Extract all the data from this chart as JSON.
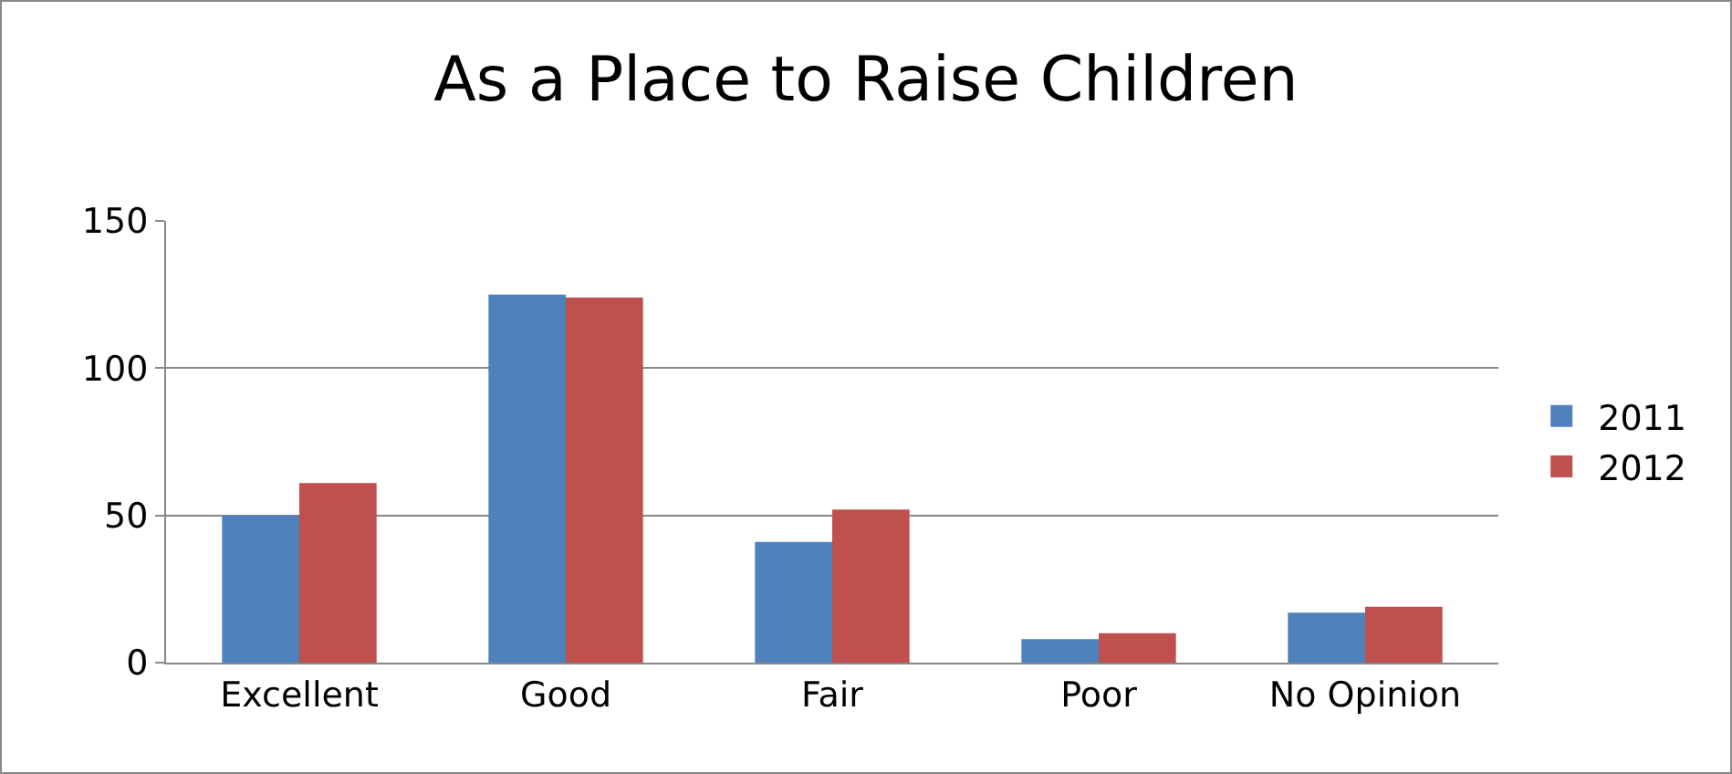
{
  "chart_data": {
    "type": "bar",
    "title": "As a Place to Raise Children",
    "categories": [
      "Excellent",
      "Good",
      "Fair",
      "Poor",
      "No Opinion"
    ],
    "series": [
      {
        "name": "2011",
        "color": "#4f81bd",
        "values": [
          50,
          125,
          41,
          8,
          17
        ]
      },
      {
        "name": "2012",
        "color": "#c0504d",
        "values": [
          61,
          124,
          52,
          10,
          19
        ]
      }
    ],
    "ylim": [
      0,
      150
    ],
    "yticks": [
      0,
      50,
      100,
      150
    ],
    "grid": "y",
    "legend": "right"
  }
}
